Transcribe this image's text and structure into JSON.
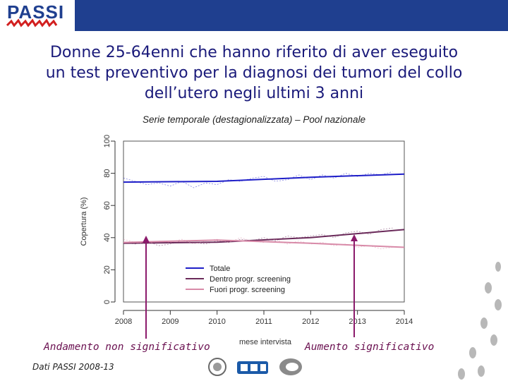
{
  "header": {
    "logo_text": "PASSI",
    "bar_color": "#1f3f8f"
  },
  "title": "Donne 25-64enni che hanno riferito di aver eseguito un test preventivo per la diagnosi dei tumori del collo dell’utero negli ultimi 3 anni",
  "subtitle": "Serie temporale (destagionalizzata) – Pool nazionale",
  "annotations": {
    "left": "Andamento non significativo",
    "right": "Aumento significativo",
    "color": "#8b1a6b"
  },
  "source": "Dati PASSI 2008-13",
  "footer_logos": [
    "seal-icon",
    "ccm-logo",
    "cnesps-logo"
  ],
  "decoration": "footprints-icon",
  "chart_data": {
    "type": "line",
    "title": "",
    "xlabel": "mese intervista",
    "ylabel": "Copertura (%)",
    "xlim": [
      2008,
      2014
    ],
    "ylim": [
      0,
      100
    ],
    "xticks": [
      2008,
      2009,
      2010,
      2011,
      2012,
      2013,
      2014
    ],
    "yticks": [
      0,
      20,
      40,
      60,
      80,
      100
    ],
    "grid": false,
    "legend_position": "bottom-center",
    "series": [
      {
        "name": "Totale",
        "color": "#1e1ec8",
        "trend": [
          [
            2008,
            74.5
          ],
          [
            2010,
            75
          ],
          [
            2012,
            77.5
          ],
          [
            2014,
            79.5
          ]
        ],
        "raw": [
          [
            2008,
            77
          ],
          [
            2008.25,
            75
          ],
          [
            2008.5,
            73
          ],
          [
            2008.75,
            74
          ],
          [
            2009,
            72
          ],
          [
            2009.25,
            75
          ],
          [
            2009.5,
            71
          ],
          [
            2009.75,
            74
          ],
          [
            2010,
            73
          ],
          [
            2010.25,
            76
          ],
          [
            2010.5,
            75
          ],
          [
            2010.75,
            77
          ],
          [
            2011,
            78
          ],
          [
            2011.25,
            75
          ],
          [
            2011.5,
            76
          ],
          [
            2011.75,
            79
          ],
          [
            2012,
            76
          ],
          [
            2012.25,
            79
          ],
          [
            2012.5,
            77
          ],
          [
            2012.75,
            80
          ],
          [
            2013,
            78
          ],
          [
            2013.25,
            80
          ],
          [
            2013.5,
            79
          ],
          [
            2013.75,
            81
          ]
        ]
      },
      {
        "name": "Dentro progr. screening",
        "color": "#6a2a5a",
        "trend": [
          [
            2008,
            36.5
          ],
          [
            2010,
            37.2
          ],
          [
            2012,
            40
          ],
          [
            2014,
            45
          ]
        ],
        "raw": [
          [
            2008,
            37
          ],
          [
            2008.25,
            36
          ],
          [
            2008.5,
            38
          ],
          [
            2008.75,
            35
          ],
          [
            2009,
            36
          ],
          [
            2009.25,
            38
          ],
          [
            2009.5,
            37
          ],
          [
            2009.75,
            36
          ],
          [
            2010,
            38
          ],
          [
            2010.25,
            37
          ],
          [
            2010.5,
            39
          ],
          [
            2010.75,
            38
          ],
          [
            2011,
            40
          ],
          [
            2011.25,
            38
          ],
          [
            2011.5,
            41
          ],
          [
            2011.75,
            40
          ],
          [
            2012,
            41
          ],
          [
            2012.25,
            42
          ],
          [
            2012.5,
            40
          ],
          [
            2012.75,
            43
          ],
          [
            2013,
            44
          ],
          [
            2013.25,
            42
          ],
          [
            2013.5,
            45
          ],
          [
            2013.75,
            46
          ]
        ]
      },
      {
        "name": "Fuori progr. screening",
        "color": "#d88aa8",
        "trend": [
          [
            2008,
            37
          ],
          [
            2010,
            38.5
          ],
          [
            2012,
            36.5
          ],
          [
            2014,
            34
          ]
        ],
        "raw": [
          [
            2008,
            39
          ],
          [
            2008.25,
            37
          ],
          [
            2008.5,
            36
          ],
          [
            2008.75,
            38
          ],
          [
            2009,
            37
          ],
          [
            2009.25,
            39
          ],
          [
            2009.5,
            36
          ],
          [
            2009.75,
            38
          ],
          [
            2010,
            39
          ],
          [
            2010.25,
            37
          ],
          [
            2010.5,
            40
          ],
          [
            2010.75,
            38
          ],
          [
            2011,
            37
          ],
          [
            2011.25,
            39
          ],
          [
            2011.5,
            36
          ],
          [
            2011.75,
            38
          ],
          [
            2012,
            36
          ],
          [
            2012.25,
            37
          ],
          [
            2012.5,
            35
          ],
          [
            2012.75,
            36
          ],
          [
            2013,
            34
          ],
          [
            2013.25,
            35
          ],
          [
            2013.5,
            33
          ],
          [
            2013.75,
            34
          ]
        ]
      }
    ]
  }
}
